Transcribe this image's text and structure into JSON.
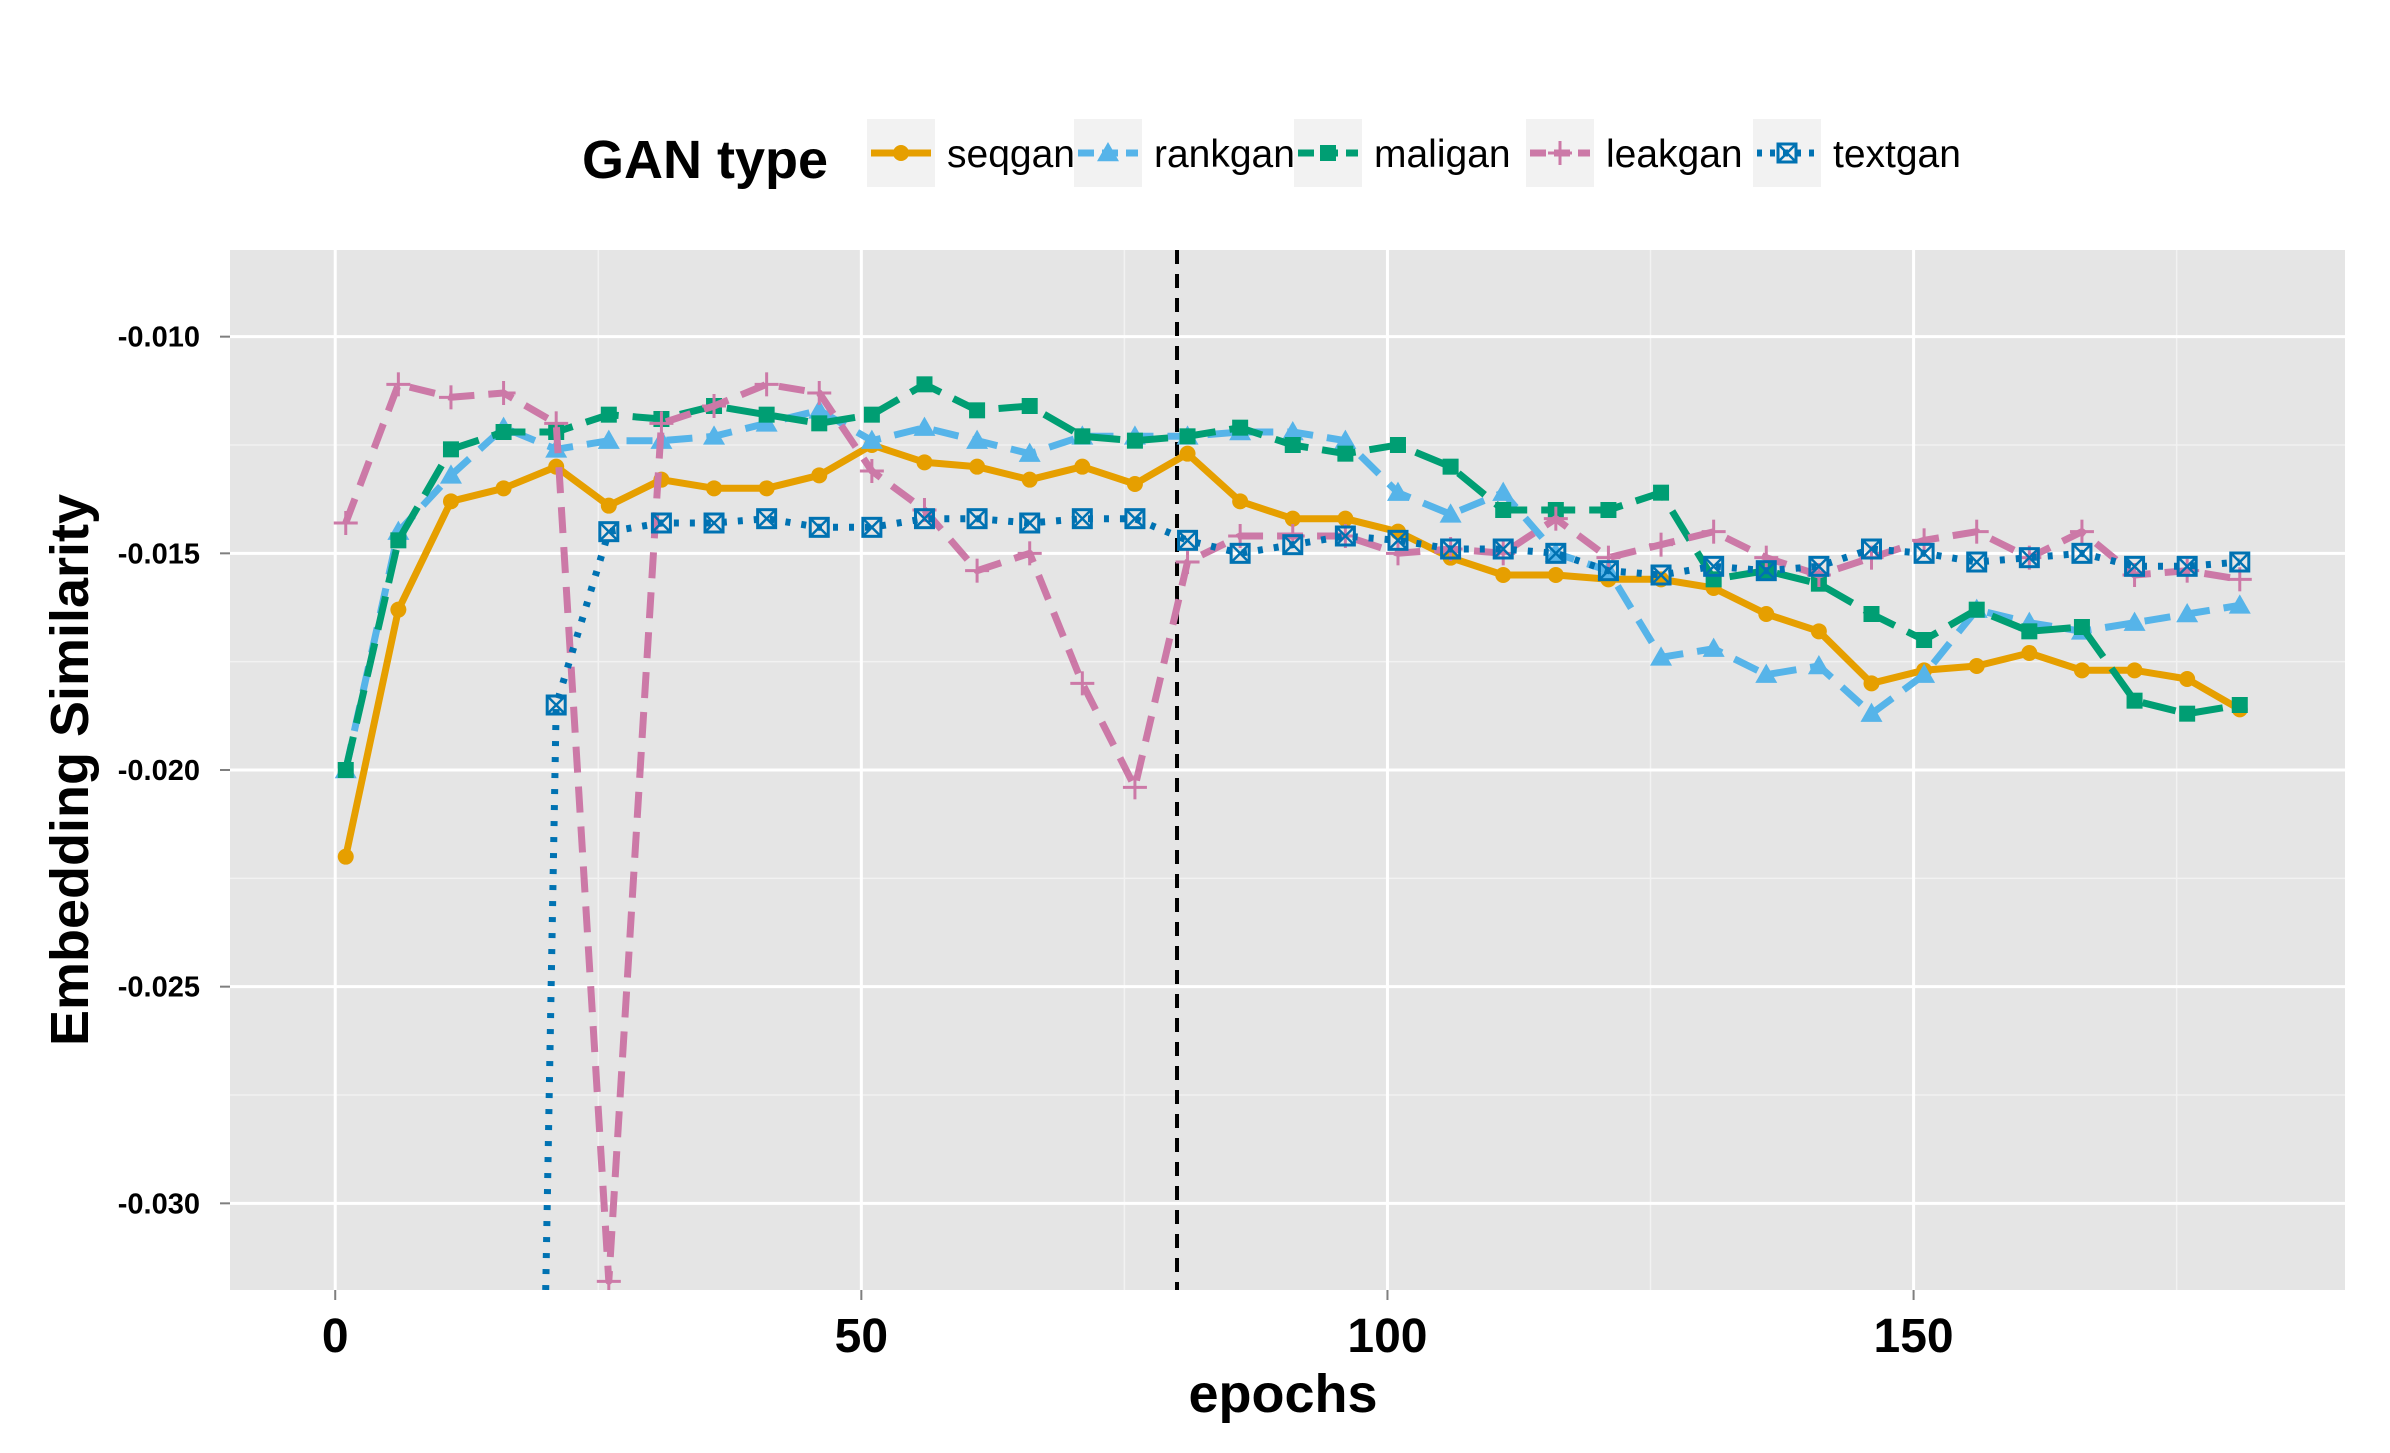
{
  "chart_data": {
    "type": "line",
    "xlabel": "epochs",
    "ylabel": "Embedding Similarity",
    "xlim": [
      -10,
      191
    ],
    "ylim": [
      -0.032,
      -0.008
    ],
    "x_ticks": [
      0,
      50,
      100,
      150
    ],
    "x_tick_labels": [
      "0",
      "50",
      "100",
      "150"
    ],
    "y_ticks": [
      -0.03,
      -0.025,
      -0.02,
      -0.015,
      -0.01
    ],
    "y_tick_labels": [
      "-0.030",
      "-0.025",
      "-0.020",
      "-0.015",
      "-0.010"
    ],
    "grid": true,
    "legend": {
      "title": "GAN type",
      "position": "top"
    },
    "vline": {
      "x": 80,
      "style": "dashed",
      "color": "#000000"
    },
    "series": [
      {
        "name": "seqgan",
        "color": "#E69F00",
        "marker": "circle",
        "dash": "solid",
        "x": [
          1,
          6,
          11,
          16,
          21,
          26,
          31,
          36,
          41,
          46,
          51,
          56,
          61,
          66,
          71,
          76,
          81,
          86,
          91,
          96,
          101,
          106,
          111,
          116,
          121,
          126,
          131,
          136,
          141,
          146,
          151,
          156,
          161,
          166,
          171,
          176,
          181
        ],
        "y": [
          -0.022,
          -0.0163,
          -0.0138,
          -0.0135,
          -0.013,
          -0.0139,
          -0.0133,
          -0.0135,
          -0.0135,
          -0.0132,
          -0.0125,
          -0.0129,
          -0.013,
          -0.0133,
          -0.013,
          -0.0134,
          -0.0127,
          -0.0138,
          -0.0142,
          -0.0142,
          -0.0145,
          -0.0151,
          -0.0155,
          -0.0155,
          -0.0156,
          -0.0156,
          -0.0158,
          -0.0164,
          -0.0168,
          -0.018,
          -0.0177,
          -0.0176,
          -0.0173,
          -0.0177,
          -0.0177,
          -0.0179,
          -0.0186
        ]
      },
      {
        "name": "rankgan",
        "color": "#56B4E9",
        "marker": "triangle",
        "dash": "dashed",
        "x": [
          1,
          6,
          11,
          16,
          21,
          26,
          31,
          36,
          41,
          46,
          51,
          56,
          61,
          66,
          71,
          76,
          81,
          86,
          91,
          96,
          101,
          106,
          111,
          116,
          121,
          126,
          131,
          136,
          141,
          146,
          151,
          156,
          161,
          166,
          171,
          176,
          181
        ],
        "y": [
          -0.02,
          -0.0145,
          -0.0132,
          -0.0121,
          -0.0126,
          -0.0124,
          -0.0124,
          -0.0123,
          -0.012,
          -0.0117,
          -0.0124,
          -0.0121,
          -0.0124,
          -0.0127,
          -0.0123,
          -0.0123,
          -0.0123,
          -0.0122,
          -0.0122,
          -0.0124,
          -0.0136,
          -0.0141,
          -0.0136,
          -0.015,
          -0.0154,
          -0.0174,
          -0.0172,
          -0.0178,
          -0.0176,
          -0.0187,
          -0.0178,
          -0.0163,
          -0.0166,
          -0.0168,
          -0.0166,
          -0.0164,
          -0.0162
        ]
      },
      {
        "name": "maligan",
        "color": "#009E73",
        "marker": "square",
        "dash": "longdash",
        "x": [
          1,
          6,
          11,
          16,
          21,
          26,
          31,
          36,
          41,
          46,
          51,
          56,
          61,
          66,
          71,
          76,
          81,
          86,
          91,
          96,
          101,
          106,
          111,
          116,
          121,
          126,
          131,
          136,
          141,
          146,
          151,
          156,
          161,
          166,
          171,
          176,
          181
        ],
        "y": [
          -0.02,
          -0.0147,
          -0.0126,
          -0.0122,
          -0.0122,
          -0.0118,
          -0.0119,
          -0.0116,
          -0.0118,
          -0.012,
          -0.0118,
          -0.0111,
          -0.0117,
          -0.0116,
          -0.0123,
          -0.0124,
          -0.0123,
          -0.0121,
          -0.0125,
          -0.0127,
          -0.0125,
          -0.013,
          -0.014,
          -0.014,
          -0.014,
          -0.0136,
          -0.0156,
          -0.0154,
          -0.0157,
          -0.0164,
          -0.017,
          -0.0163,
          -0.0168,
          -0.0167,
          -0.0184,
          -0.0187,
          -0.0185
        ]
      },
      {
        "name": "leakgan",
        "color": "#CC79A7",
        "marker": "plus",
        "dash": "dashed",
        "x": [
          1,
          6,
          11,
          16,
          21,
          26,
          31,
          36,
          41,
          46,
          51,
          56,
          61,
          66,
          71,
          76,
          81,
          86,
          91,
          96,
          101,
          106,
          111,
          116,
          121,
          126,
          131,
          136,
          141,
          146,
          151,
          156,
          161,
          166,
          171,
          176,
          181
        ],
        "y": [
          -0.0143,
          -0.0111,
          -0.0114,
          -0.0113,
          -0.012,
          -0.0318,
          -0.012,
          -0.0116,
          -0.0111,
          -0.0113,
          -0.0131,
          -0.014,
          -0.0154,
          -0.015,
          -0.018,
          -0.0204,
          -0.0152,
          -0.0146,
          -0.0146,
          -0.0146,
          -0.015,
          -0.0149,
          -0.015,
          -0.0142,
          -0.0151,
          -0.0148,
          -0.0145,
          -0.0151,
          -0.0155,
          -0.0151,
          -0.0147,
          -0.0145,
          -0.0151,
          -0.0145,
          -0.0155,
          -0.0154,
          -0.0156
        ]
      },
      {
        "name": "textgan",
        "color": "#0072B2",
        "marker": "boxcross",
        "dash": "dotted",
        "x": [
          20,
          21,
          26,
          31,
          36,
          41,
          46,
          51,
          56,
          61,
          66,
          71,
          76,
          81,
          86,
          91,
          96,
          101,
          106,
          111,
          116,
          121,
          126,
          131,
          136,
          141,
          146,
          151,
          156,
          161,
          166,
          171,
          176,
          181
        ],
        "y": [
          -0.032,
          -0.0185,
          -0.0145,
          -0.0143,
          -0.0143,
          -0.0142,
          -0.0144,
          -0.0144,
          -0.0142,
          -0.0142,
          -0.0143,
          -0.0142,
          -0.0142,
          -0.0147,
          -0.015,
          -0.0148,
          -0.0146,
          -0.0147,
          -0.0149,
          -0.0149,
          -0.015,
          -0.0154,
          -0.0155,
          -0.0153,
          -0.0154,
          -0.0153,
          -0.0149,
          -0.015,
          -0.0152,
          -0.0151,
          -0.015,
          -0.0153,
          -0.0153,
          -0.0152
        ],
        "marker_from_index": 1
      }
    ]
  }
}
